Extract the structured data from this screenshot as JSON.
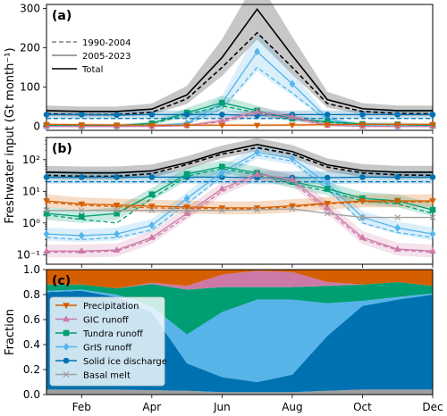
{
  "figure": {
    "ylabel_shared": "Freshwater input (Gt month⁻¹)",
    "months": [
      "Feb",
      "Apr",
      "Jun",
      "Aug",
      "Oct",
      "Dec"
    ]
  },
  "chart_data": [
    {
      "panel": "(a)",
      "type": "line",
      "scale": "linear",
      "xlim": [
        1,
        12
      ],
      "ylim": [
        -10,
        310
      ],
      "yticks": [
        0,
        100,
        200,
        300
      ],
      "grid": false,
      "legend_placement": "center-left",
      "legend": [
        {
          "label": "1990-2004",
          "style": "dashed",
          "color": "#808080"
        },
        {
          "label": "2005-2023",
          "style": "solid",
          "color": "#808080"
        },
        {
          "label": "Total",
          "style": "solid",
          "color": "#000000"
        }
      ],
      "series": [
        {
          "name": "Total",
          "period": "2005-2023",
          "color": "#000000",
          "x": [
            1,
            2,
            3,
            4,
            5,
            6,
            7,
            8,
            9,
            10,
            11,
            12
          ],
          "values": [
            40,
            38,
            38,
            44,
            80,
            175,
            298,
            180,
            68,
            45,
            40,
            40
          ]
        },
        {
          "name": "Total",
          "period": "1990-2004",
          "color": "#000000",
          "x": [
            1,
            2,
            3,
            4,
            5,
            6,
            7,
            8,
            9,
            10,
            11,
            12
          ],
          "values": [
            32,
            30,
            30,
            36,
            70,
            150,
            238,
            150,
            58,
            38,
            33,
            32
          ]
        },
        {
          "name": "GrIS runoff",
          "period": "2005-2023",
          "color": "#56B4E9",
          "x": [
            1,
            2,
            3,
            4,
            5,
            6,
            7,
            8,
            9,
            10,
            11,
            12
          ],
          "values": [
            0,
            0,
            0,
            1,
            8,
            60,
            190,
            108,
            20,
            2,
            0,
            0
          ]
        },
        {
          "name": "GrIS runoff",
          "period": "1990-2004",
          "color": "#56B4E9",
          "x": [
            1,
            2,
            3,
            4,
            5,
            6,
            7,
            8,
            9,
            10,
            11,
            12
          ],
          "values": [
            0,
            0,
            0,
            1,
            6,
            45,
            150,
            85,
            15,
            1,
            0,
            0
          ]
        },
        {
          "name": "Tundra runoff",
          "period": "2005-2023",
          "color": "#009E73",
          "x": [
            1,
            2,
            3,
            4,
            5,
            6,
            7,
            8,
            9,
            10,
            11,
            12
          ],
          "values": [
            2,
            1.5,
            2,
            8,
            35,
            60,
            40,
            20,
            12,
            6,
            5,
            2.5
          ]
        },
        {
          "name": "Tundra runoff",
          "period": "1990-2004",
          "color": "#009E73",
          "x": [
            1,
            2,
            3,
            4,
            5,
            6,
            7,
            8,
            9,
            10,
            11,
            12
          ],
          "values": [
            2,
            1.5,
            1,
            7,
            30,
            52,
            35,
            18,
            10,
            5,
            4,
            2
          ]
        },
        {
          "name": "Solid ice discharge",
          "period": "2005-2023",
          "color": "#0072B2",
          "x": [
            1,
            2,
            3,
            4,
            5,
            6,
            7,
            8,
            9,
            10,
            11,
            12
          ],
          "values": [
            30,
            30,
            29,
            30,
            30,
            30,
            28,
            30,
            30,
            30,
            30,
            30
          ]
        },
        {
          "name": "Solid ice discharge",
          "period": "1990-2004",
          "color": "#0072B2",
          "x": [
            1,
            2,
            3,
            4,
            5,
            6,
            7,
            8,
            9,
            10,
            11,
            12
          ],
          "values": [
            20,
            20,
            20,
            20,
            20,
            20,
            20,
            20,
            20,
            20,
            20,
            20
          ]
        },
        {
          "name": "GIC runoff",
          "period": "2005-2023",
          "color": "#CC79A7",
          "x": [
            1,
            2,
            3,
            4,
            5,
            6,
            7,
            8,
            9,
            10,
            11,
            12
          ],
          "values": [
            0,
            0,
            0,
            0,
            2,
            15,
            38,
            25,
            3,
            0,
            0,
            0
          ]
        },
        {
          "name": "GIC runoff",
          "period": "1990-2004",
          "color": "#CC79A7",
          "x": [
            1,
            2,
            3,
            4,
            5,
            6,
            7,
            8,
            9,
            10,
            11,
            12
          ],
          "values": [
            0,
            0,
            0,
            0,
            2,
            12,
            32,
            20,
            3,
            0,
            0,
            0
          ]
        },
        {
          "name": "Precipitation",
          "period": "2005-2023",
          "color": "#D55E00",
          "x": [
            1,
            2,
            3,
            4,
            5,
            6,
            7,
            8,
            9,
            10,
            11,
            12
          ],
          "values": [
            5,
            4,
            3.5,
            3,
            3,
            3,
            3,
            3.5,
            4.5,
            5,
            5,
            5
          ]
        }
      ]
    },
    {
      "panel": "(b)",
      "type": "line",
      "scale": "log",
      "xlim": [
        1,
        12
      ],
      "ylim": [
        0.05,
        500
      ],
      "yticks": [
        "10⁻¹",
        "10⁰",
        "10¹",
        "10²"
      ],
      "grid": false,
      "series": [
        {
          "name": "Total",
          "period": "2005-2023",
          "color": "#000000",
          "x": [
            1,
            2,
            3,
            4,
            5,
            6,
            7,
            8,
            9,
            10,
            11,
            12
          ],
          "values": [
            40,
            38,
            38,
            44,
            80,
            175,
            298,
            180,
            68,
            45,
            40,
            40
          ]
        },
        {
          "name": "Total",
          "period": "1990-2004",
          "color": "#000000",
          "x": [
            1,
            2,
            3,
            4,
            5,
            6,
            7,
            8,
            9,
            10,
            11,
            12
          ],
          "values": [
            32,
            30,
            30,
            36,
            70,
            150,
            238,
            150,
            58,
            38,
            33,
            32
          ]
        },
        {
          "name": "Solid ice discharge",
          "period": "2005-2023",
          "color": "#0072B2",
          "x": [
            1,
            2,
            3,
            4,
            5,
            6,
            7,
            8,
            9,
            10,
            11,
            12
          ],
          "values": [
            28,
            28,
            28,
            28,
            28,
            28,
            27,
            27,
            27,
            28,
            28,
            28
          ]
        },
        {
          "name": "Solid ice discharge",
          "period": "1990-2004",
          "color": "#0072B2",
          "x": [
            1,
            2,
            3,
            4,
            5,
            6,
            7,
            8,
            9,
            10,
            11,
            12
          ],
          "values": [
            20,
            20,
            20,
            20,
            20,
            20,
            20,
            20,
            20,
            20,
            20,
            20
          ]
        },
        {
          "name": "GrIS runoff",
          "period": "2005-2023",
          "color": "#56B4E9",
          "x": [
            1,
            2,
            3,
            4,
            5,
            6,
            7,
            8,
            9,
            10,
            11,
            12
          ],
          "values": [
            0.45,
            0.4,
            0.45,
            0.85,
            6,
            40,
            170,
            110,
            18,
            1.5,
            0.7,
            0.45
          ]
        },
        {
          "name": "GrIS runoff",
          "period": "1990-2004",
          "color": "#56B4E9",
          "x": [
            1,
            2,
            3,
            4,
            5,
            6,
            7,
            8,
            9,
            10,
            11,
            12
          ],
          "values": [
            0.35,
            0.3,
            0.35,
            0.6,
            4,
            30,
            140,
            90,
            12,
            1,
            0.5,
            0.35
          ]
        },
        {
          "name": "Tundra runoff",
          "period": "2005-2023",
          "color": "#009E73",
          "x": [
            1,
            2,
            3,
            4,
            5,
            6,
            7,
            8,
            9,
            10,
            11,
            12
          ],
          "values": [
            2,
            1.6,
            2,
            8,
            35,
            60,
            38,
            20,
            12,
            6,
            5,
            2.6
          ]
        },
        {
          "name": "Tundra runoff",
          "period": "1990-2004",
          "color": "#009E73",
          "x": [
            1,
            2,
            3,
            4,
            5,
            6,
            7,
            8,
            9,
            10,
            11,
            12
          ],
          "values": [
            1.8,
            1.3,
            1,
            6,
            30,
            52,
            33,
            17,
            10,
            5,
            4,
            2
          ]
        },
        {
          "name": "GIC runoff",
          "period": "2005-2023",
          "color": "#CC79A7",
          "x": [
            1,
            2,
            3,
            4,
            5,
            6,
            7,
            8,
            9,
            10,
            11,
            12
          ],
          "values": [
            0.13,
            0.13,
            0.14,
            0.35,
            2,
            12,
            35,
            24,
            3,
            0.35,
            0.15,
            0.13
          ]
        },
        {
          "name": "GIC runoff",
          "period": "1990-2004",
          "color": "#CC79A7",
          "x": [
            1,
            2,
            3,
            4,
            5,
            6,
            7,
            8,
            9,
            10,
            11,
            12
          ],
          "values": [
            0.12,
            0.12,
            0.13,
            0.3,
            1.6,
            10,
            30,
            20,
            2.5,
            0.3,
            0.14,
            0.12
          ]
        },
        {
          "name": "Precipitation",
          "period": "2005-2023",
          "color": "#D55E00",
          "x": [
            1,
            2,
            3,
            4,
            5,
            6,
            7,
            8,
            9,
            10,
            11,
            12
          ],
          "values": [
            5,
            4,
            3.7,
            3.4,
            3.2,
            3,
            3,
            3.5,
            4.2,
            5,
            5,
            5
          ]
        },
        {
          "name": "Precipitation",
          "period": "1990-2004",
          "color": "#D55E00",
          "x": [
            1,
            2,
            3,
            4,
            5,
            6,
            7,
            8,
            9,
            10,
            11,
            12
          ],
          "values": [
            4.5,
            3.6,
            3.3,
            3,
            2.9,
            2.8,
            2.8,
            3.2,
            4,
            4.6,
            4.6,
            4.6
          ]
        },
        {
          "name": "Basal melt",
          "period": "2005-2023",
          "color": "#A0A0A0",
          "x": [
            1,
            2,
            3,
            4,
            5,
            6,
            7,
            8,
            9,
            10,
            11,
            12
          ],
          "values": [
            2.5,
            2.5,
            2.5,
            2.5,
            2.5,
            2.5,
            2.6,
            2.8,
            2,
            1.5,
            1.5,
            1.5
          ]
        }
      ]
    },
    {
      "panel": "(c)",
      "type": "area",
      "stacked": true,
      "xlim": [
        1,
        12
      ],
      "ylim": [
        0,
        1
      ],
      "yticks": [
        "0.0",
        "0.2",
        "0.4",
        "0.6",
        "0.8",
        "1.0"
      ],
      "ylabel": "Fraction",
      "grid": false,
      "legend_placement": "lower-left",
      "x": [
        1,
        2,
        3,
        4,
        5,
        6,
        7,
        8,
        9,
        10,
        11,
        12
      ],
      "series": [
        {
          "name": "Basal melt",
          "color": "#A0A0A0",
          "marker": "x",
          "values": [
            0.04,
            0.04,
            0.04,
            0.035,
            0.03,
            0.02,
            0.02,
            0.02,
            0.03,
            0.04,
            0.04,
            0.04
          ]
        },
        {
          "name": "Solid ice discharge",
          "color": "#0072B2",
          "marker": "o",
          "values": [
            0.78,
            0.79,
            0.74,
            0.62,
            0.22,
            0.12,
            0.08,
            0.14,
            0.44,
            0.67,
            0.72,
            0.76
          ]
        },
        {
          "name": "GrIS runoff",
          "color": "#56B4E9",
          "marker": "D",
          "values": [
            0.01,
            0.01,
            0.02,
            0.05,
            0.23,
            0.52,
            0.66,
            0.6,
            0.26,
            0.04,
            0.02,
            0.01
          ]
        },
        {
          "name": "Tundra runoff",
          "color": "#009E73",
          "marker": "s",
          "values": [
            0.05,
            0.04,
            0.05,
            0.18,
            0.36,
            0.2,
            0.1,
            0.1,
            0.14,
            0.13,
            0.12,
            0.06
          ]
        },
        {
          "name": "GIC runoff",
          "color": "#CC79A7",
          "marker": "^",
          "values": [
            0.0,
            0.0,
            0.0,
            0.01,
            0.03,
            0.1,
            0.13,
            0.12,
            0.03,
            0.0,
            0.0,
            0.0
          ]
        },
        {
          "name": "Precipitation",
          "color": "#D55E00",
          "marker": "v",
          "values": [
            0.12,
            0.12,
            0.15,
            0.105,
            0.13,
            0.04,
            0.01,
            0.02,
            0.1,
            0.12,
            0.1,
            0.13
          ]
        }
      ]
    }
  ]
}
